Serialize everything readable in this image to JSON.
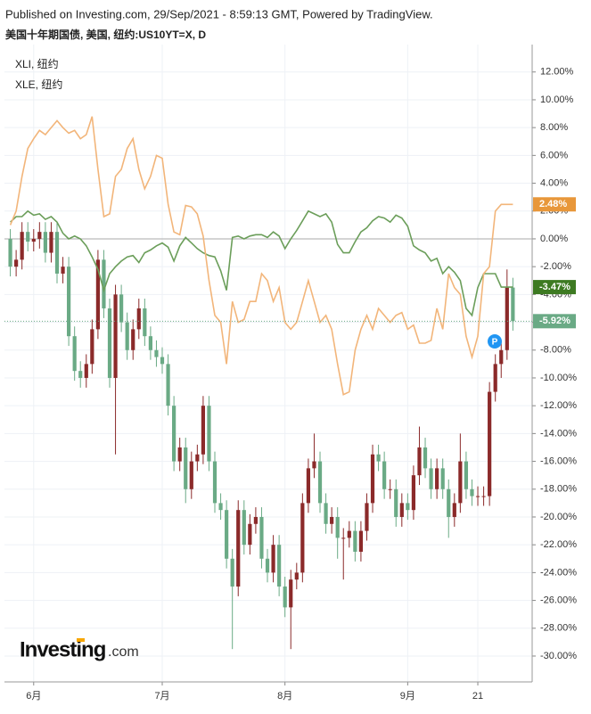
{
  "chart_data": {
    "type": "candlestick",
    "source": "Published on Investing.com, 29/Sep/2021 - 8:59:13 GMT, Powered by TradingView.",
    "title": "美国十年期国债, 美国, 纽约:US10YT=X, D",
    "watermark": "Investing",
    "watermark_suffix": ".com",
    "up_color": "#8b2a2a",
    "down_color": "#6aaa85",
    "grid": true,
    "xlim": [
      -1,
      89.3
    ],
    "xticks": [
      {
        "value": 4,
        "label": "6月"
      },
      {
        "value": 26,
        "label": "7月"
      },
      {
        "value": 47,
        "label": "8月"
      },
      {
        "value": 68,
        "label": "9月"
      },
      {
        "value": 80,
        "label": "21"
      }
    ],
    "ylim": [
      -31.86,
      13.33
    ],
    "yticks": [
      {
        "value": -30,
        "label": "-30.00%"
      },
      {
        "value": -28,
        "label": "-28.00%"
      },
      {
        "value": -26,
        "label": "-26.00%"
      },
      {
        "value": -24,
        "label": "-24.00%"
      },
      {
        "value": -22,
        "label": "-22.00%"
      },
      {
        "value": -20,
        "label": "-20.00%"
      },
      {
        "value": -18,
        "label": "-18.00%"
      },
      {
        "value": -16,
        "label": "-16.00%"
      },
      {
        "value": -14,
        "label": "-14.00%"
      },
      {
        "value": -12,
        "label": "-12.00%"
      },
      {
        "value": -10,
        "label": "-10.00%"
      },
      {
        "value": -8,
        "label": "-8.00%"
      },
      {
        "value": -6,
        "label": "-6.00%"
      },
      {
        "value": -4,
        "label": "-4.00%"
      },
      {
        "value": -2,
        "label": "-2.00%"
      },
      {
        "value": 0,
        "label": "0.00%"
      },
      {
        "value": 2,
        "label": "2.00%"
      },
      {
        "value": 4,
        "label": "4.00%"
      },
      {
        "value": 6,
        "label": "6.00%"
      },
      {
        "value": 8,
        "label": "8.00%"
      },
      {
        "value": 10,
        "label": "10.00%"
      },
      {
        "value": 12,
        "label": "12.00%"
      }
    ],
    "open": [
      0,
      -2,
      -1.5,
      0.5,
      -0.2,
      0,
      0.5,
      -1,
      0.5,
      -2.5,
      -2,
      -7,
      -9.5,
      -10,
      -9,
      -6.5,
      -1.5,
      -5,
      -10,
      -4,
      -6,
      -8,
      -6.5,
      -5,
      -7,
      -8,
      -8.5,
      -9,
      -12,
      -16,
      -15,
      -18,
      -16,
      -15.5,
      -12,
      -16,
      -19,
      -19.5,
      -23,
      -25,
      -19.5,
      -22,
      -20.5,
      -20,
      -23,
      -24,
      -22,
      -25,
      -26.5,
      -24.5,
      -24,
      -19,
      -16.5,
      -16,
      -19,
      -20.5,
      -20,
      -21.5,
      -21.5,
      -21,
      -22.5,
      -21,
      -19,
      -15.5,
      -16,
      -18,
      -18,
      -20,
      -19,
      -19.5,
      -17,
      -15,
      -16.5,
      -18,
      -16.5,
      -18,
      -20,
      -19,
      -16,
      -18,
      -18.5,
      -18.5,
      -18.5,
      -11,
      -9,
      -8,
      -3.5
    ],
    "high": [
      0.7,
      -0.8,
      1.2,
      1.2,
      0.7,
      1.2,
      1.2,
      1.2,
      1.2,
      -1.3,
      -1.3,
      -6.3,
      -8.8,
      -8.3,
      -5.8,
      -0.8,
      -0.8,
      -4.3,
      -3.3,
      -3.3,
      -5.3,
      -5.8,
      -4.3,
      -4.3,
      -6.3,
      -7.3,
      -7.8,
      -8.3,
      -11.3,
      -14.3,
      -14.3,
      -15.3,
      -14.8,
      -11.3,
      -11.3,
      -15.3,
      -18.3,
      -18.8,
      -22.3,
      -18.8,
      -18.8,
      -19.8,
      -19.3,
      -19.3,
      -22.3,
      -21.3,
      -21.3,
      -24.3,
      -23.8,
      -23.3,
      -18.3,
      -15.8,
      -14,
      -15.3,
      -18.3,
      -19.3,
      -19.3,
      -20.8,
      -20.3,
      -20.3,
      -20.3,
      -18.3,
      -14.8,
      -14.8,
      -15.3,
      -17.3,
      -17.3,
      -18.3,
      -18.3,
      -16.3,
      -13.5,
      -14.3,
      -15.8,
      -15.8,
      -15.8,
      -17.3,
      -18.3,
      -14,
      -15.3,
      -17.3,
      -17.8,
      -17.8,
      -10.3,
      -8.3,
      -7.3,
      -2.2,
      -2.8
    ],
    "low": [
      -2.7,
      -2.7,
      -2.2,
      -0.9,
      -0.9,
      -0.7,
      -1.7,
      -1.7,
      -3.2,
      -3.2,
      -7.7,
      -10.2,
      -10.7,
      -10.7,
      -9.7,
      -7.2,
      -5.7,
      -10.7,
      -15.5,
      -6.7,
      -8.7,
      -8.7,
      -7.2,
      -7.7,
      -8.7,
      -9.2,
      -9.7,
      -12.7,
      -16.7,
      -16.7,
      -19,
      -18.7,
      -16.7,
      -16.2,
      -16.7,
      -19.7,
      -20.2,
      -23.7,
      -29.5,
      -25.7,
      -22.7,
      -22.7,
      -21.2,
      -23.7,
      -24.7,
      -24.7,
      -25.7,
      -27.2,
      -29.5,
      -25.2,
      -24.7,
      -19.7,
      -17.2,
      -19.7,
      -21.2,
      -21.2,
      -23,
      -24.5,
      -22.2,
      -23.2,
      -23.2,
      -21.7,
      -19.7,
      -16.7,
      -18.7,
      -18.7,
      -20.7,
      -20.7,
      -20.2,
      -20.2,
      -17.7,
      -17.2,
      -18.7,
      -18.7,
      -18.7,
      -21.5,
      -20.7,
      -19.7,
      -18.7,
      -19.2,
      -19.2,
      -19.2,
      -19.2,
      -11.7,
      -10,
      -8.7,
      -6.6
    ],
    "close": [
      -2,
      -1.5,
      0.5,
      -0.2,
      0,
      0.5,
      -1,
      0.5,
      -2.5,
      -2,
      -7,
      -9.5,
      -10,
      -9,
      -6.5,
      -1.5,
      -5,
      -10,
      -4,
      -6,
      -8,
      -6.5,
      -5,
      -7,
      -8,
      -8.5,
      -9,
      -12,
      -16,
      -15,
      -18,
      -16,
      -15.5,
      -12,
      -16,
      -19,
      -19.5,
      -23,
      -25,
      -19.5,
      -22,
      -20.5,
      -20,
      -23,
      -24,
      -22,
      -25,
      -26.5,
      -24.5,
      -24,
      -19,
      -16.5,
      -16,
      -19,
      -20.5,
      -20,
      -21.5,
      -21.5,
      -21,
      -22.5,
      -21,
      -19,
      -15.5,
      -16,
      -18,
      -18,
      -20,
      -19,
      -19.5,
      -17,
      -15,
      -16.5,
      -18,
      -16.5,
      -18,
      -20,
      -19,
      -16,
      -18,
      -18.5,
      -18.5,
      -18.5,
      -11,
      -9,
      -8,
      -3.5,
      -5.92
    ],
    "series": [
      {
        "name": "XLI, 纽约",
        "color": "#6b9e5a",
        "values": [
          1.2,
          1.6,
          1.6,
          2,
          1.7,
          1.8,
          1.4,
          1.6,
          1.2,
          0.4,
          0,
          0.2,
          0,
          -0.5,
          -1.3,
          -2.2,
          -3.7,
          -2.5,
          -2,
          -1.6,
          -1.3,
          -1.2,
          -1.7,
          -1,
          -0.8,
          -0.5,
          -0.3,
          -0.6,
          -1.6,
          -0.5,
          0.1,
          -0.3,
          -0.7,
          -1,
          -1.2,
          -1.3,
          -2.3,
          -3.7,
          0.1,
          0.2,
          0,
          0.2,
          0.3,
          0.3,
          0.1,
          0.5,
          0.2,
          -0.7,
          0,
          0.6,
          1.3,
          2,
          1.8,
          1.6,
          1.8,
          1.2,
          -0.4,
          -1,
          -1,
          -0.2,
          0.5,
          0.8,
          1.3,
          1.6,
          1.5,
          1.2,
          1.7,
          1.5,
          0.9,
          -0.5,
          -0.8,
          -1,
          -1.6,
          -1.4,
          -2.5,
          -2,
          -2.4,
          -3,
          -5,
          -5.5,
          -3.5,
          -2.5,
          -2.5,
          -2.5,
          -3.47,
          -3.47,
          -3.47
        ]
      },
      {
        "name": "XLE, 纽约",
        "color": "#f2b57a",
        "values": [
          1,
          2,
          4.5,
          6.5,
          7.2,
          7.8,
          7.5,
          8,
          8.5,
          8,
          7.6,
          7.8,
          7.2,
          7.5,
          8.8,
          5,
          1.6,
          1.8,
          4.5,
          5,
          6.5,
          7.2,
          5,
          3.6,
          4.5,
          6,
          5.8,
          2.5,
          0.5,
          0.3,
          2.4,
          2.3,
          1.8,
          0.2,
          -3,
          -5.5,
          -6,
          -9,
          -4.5,
          -6,
          -5.8,
          -4.5,
          -4.5,
          -2.5,
          -3,
          -4.5,
          -3.5,
          -6,
          -6.5,
          -6,
          -4.5,
          -3,
          -4.5,
          -6,
          -5.5,
          -6.5,
          -9,
          -11.2,
          -11,
          -8,
          -6.5,
          -5.5,
          -6.5,
          -5,
          -5.5,
          -6,
          -5.5,
          -5.3,
          -6.5,
          -6.2,
          -7.5,
          -7.5,
          -7.3,
          -5,
          -6.5,
          -2.5,
          -3.5,
          -4,
          -7,
          -8.5,
          -7,
          -2.5,
          -2,
          2,
          2.48,
          2.48,
          2.48
        ]
      }
    ],
    "price_labels": [
      {
        "value": 2.48,
        "label": "2.48%",
        "color": "#e8973a"
      },
      {
        "value": -3.47,
        "label": "-3.47%",
        "color": "#3d7a22"
      },
      {
        "value": -5.92,
        "label": "-5.92%",
        "color": "#6aaa85"
      }
    ]
  }
}
